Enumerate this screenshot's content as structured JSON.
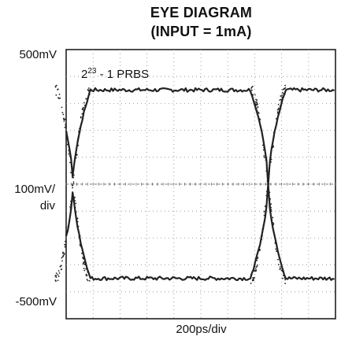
{
  "chart_data": {
    "type": "line",
    "title_line1": "EYE DIAGRAM",
    "title_line2": "(INPUT = 1mA)",
    "y_top_label": "500mV",
    "y_scale_label_1": "100mV/",
    "y_scale_label_2": "div",
    "y_bottom_label": "-500mV",
    "x_label": "200ps/div",
    "annotation_base": "2",
    "annotation_exp": "23",
    "annotation_rest": " - 1 PRBS",
    "ylim": [
      -500,
      500
    ],
    "grid": true,
    "divisions": {
      "x": 10,
      "y": 10
    },
    "eye": {
      "high_level_mv": 350,
      "low_level_mv": -350,
      "crossing_level_mv": 0,
      "crossing_times_ps": [
        50,
        1500
      ],
      "unit_interval_ps": 1450
    },
    "trace_color": "#222222"
  }
}
